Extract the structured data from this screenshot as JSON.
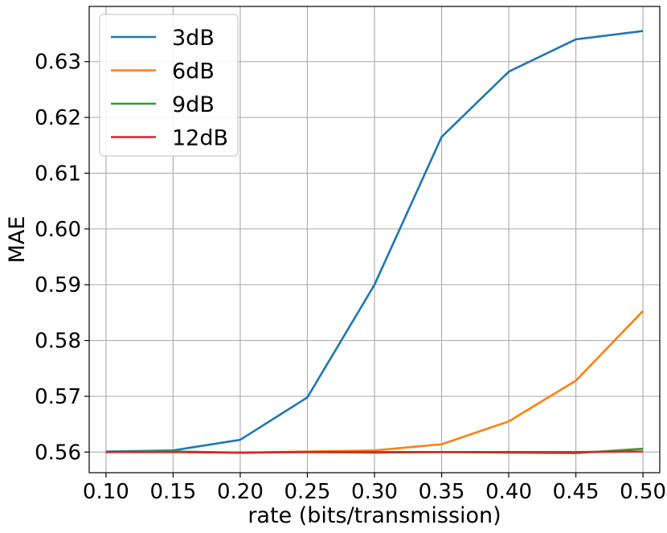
{
  "chart_data": {
    "type": "line",
    "title": "",
    "xlabel": "rate (bits/transmission)",
    "ylabel": "MAE",
    "x": [
      0.1,
      0.15,
      0.2,
      0.25,
      0.3,
      0.35,
      0.4,
      0.45,
      0.5
    ],
    "x_tick_labels": [
      "0.10",
      "0.15",
      "0.20",
      "0.25",
      "0.30",
      "0.35",
      "0.40",
      "0.45",
      "0.50"
    ],
    "y_ticks": [
      0.56,
      0.57,
      0.58,
      0.59,
      0.6,
      0.61,
      0.62,
      0.63
    ],
    "y_tick_labels": [
      "0.56",
      "0.57",
      "0.58",
      "0.59",
      "0.60",
      "0.61",
      "0.62",
      "0.63"
    ],
    "xlim": [
      0.0875,
      0.5125
    ],
    "ylim": [
      0.5563,
      0.6399
    ],
    "grid": true,
    "legend_position": "top-left",
    "series": [
      {
        "name": "3dB",
        "color": "#1f77b4",
        "values": [
          0.5601,
          0.5603,
          0.5622,
          0.5698,
          0.59,
          0.6165,
          0.6282,
          0.634,
          0.6355
        ]
      },
      {
        "name": "6dB",
        "color": "#ff7f0e",
        "values": [
          0.56,
          0.5601,
          0.5599,
          0.5601,
          0.5603,
          0.5614,
          0.5655,
          0.5728,
          0.5853
        ]
      },
      {
        "name": "9dB",
        "color": "#2ca02c",
        "values": [
          0.56,
          0.5601,
          0.5599,
          0.56,
          0.5599,
          0.56,
          0.5599,
          0.5598,
          0.5606
        ]
      },
      {
        "name": "12dB",
        "color": "#d62728",
        "values": [
          0.56,
          0.56,
          0.5599,
          0.56,
          0.56,
          0.56,
          0.56,
          0.56,
          0.5601
        ]
      }
    ]
  }
}
